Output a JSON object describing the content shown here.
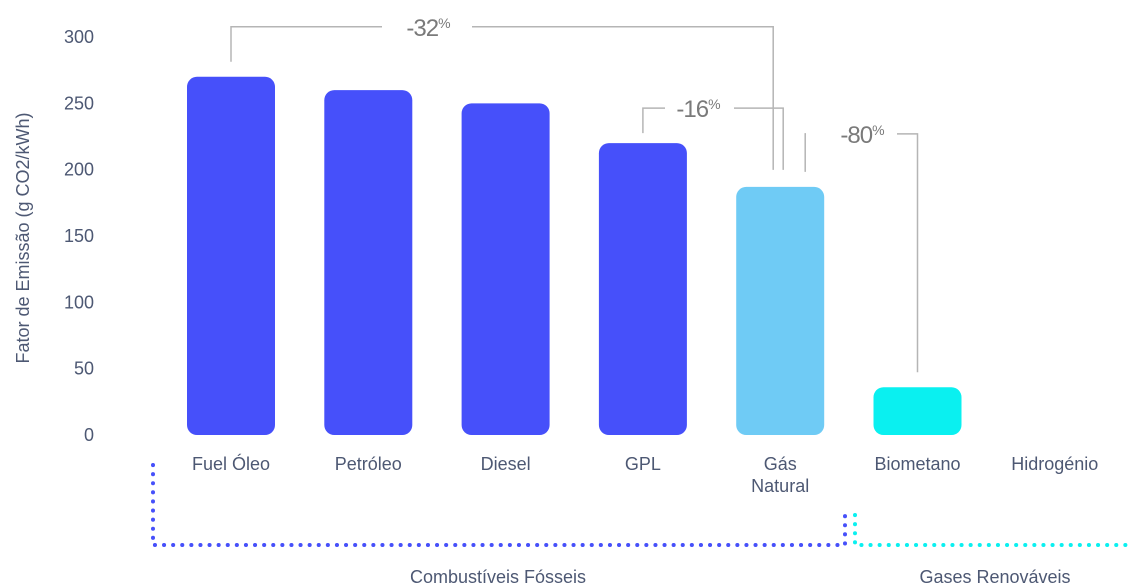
{
  "chart_data": {
    "type": "bar",
    "ylabel": "Fator de Emissão (g CO2/kWh)",
    "ylim": [
      0,
      300
    ],
    "yticks": [
      0,
      50,
      100,
      150,
      200,
      250,
      300
    ],
    "grid": false,
    "categories": [
      "Fuel Óleo",
      "Petróleo",
      "Diesel",
      "GPL",
      "Gás Natural",
      "Biometano",
      "Hidrogénio"
    ],
    "category_lines": [
      [
        "Fuel Óleo"
      ],
      [
        "Petróleo"
      ],
      [
        "Diesel"
      ],
      [
        "GPL"
      ],
      [
        "Gás",
        "Natural"
      ],
      [
        "Biometano"
      ],
      [
        "Hidrogénio"
      ]
    ],
    "values": [
      270,
      260,
      250,
      220,
      187,
      36,
      0
    ],
    "bar_colors": [
      "#4650fa",
      "#4650fa",
      "#4650fa",
      "#4650fa",
      "#6fcbf5",
      "#0af0f0",
      "#0af0f0"
    ],
    "annotations": [
      {
        "value": "-32",
        "unit": "%",
        "from": "Fuel Óleo",
        "to": "Gás Natural"
      },
      {
        "value": "-16",
        "unit": "%",
        "from": "GPL",
        "to": "Gás Natural"
      },
      {
        "value": "-80",
        "unit": "%",
        "from": "Gás Natural",
        "to": "Biometano"
      }
    ],
    "groups": [
      {
        "label": "Combustíveis Fósseis",
        "color": "#4650fa"
      },
      {
        "label": "Gases Renováveis",
        "color": "#0af0f0"
      }
    ]
  }
}
